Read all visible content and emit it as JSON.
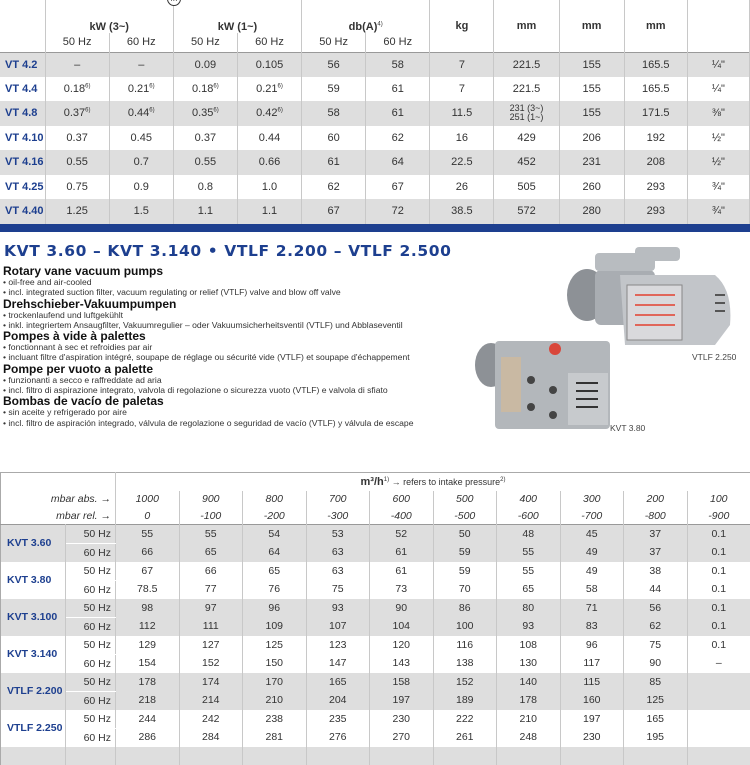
{
  "top_table": {
    "header_groups": [
      "kW (3~)",
      "kW (1~)",
      "db(A)",
      "kg",
      "mm",
      "mm",
      "mm"
    ],
    "db_footnote": "4)",
    "freq": [
      "50 Hz",
      "60 Hz"
    ],
    "motor_icon_label": "m",
    "rows": [
      {
        "model": "VT 4.2",
        "v": [
          "–",
          "–",
          "0.09",
          "0.105",
          "56",
          "58",
          "7",
          "221.5",
          "155",
          "165.5",
          "¼\""
        ]
      },
      {
        "model": "VT 4.4",
        "v": [
          "0.18",
          "0.21",
          "0.18",
          "0.21",
          "59",
          "61",
          "7",
          "221.5",
          "155",
          "165.5",
          "¼\""
        ],
        "fn": "6)"
      },
      {
        "model": "VT 4.8",
        "v": [
          "0.37",
          "0.44",
          "0.35",
          "0.42",
          "58",
          "61",
          "11.5",
          "231 (3~)\n251 (1~)",
          "155",
          "171.5",
          "⅜\""
        ],
        "fn": "6)"
      },
      {
        "model": "VT 4.10",
        "v": [
          "0.37",
          "0.45",
          "0.37",
          "0.44",
          "60",
          "62",
          "16",
          "429",
          "206",
          "192",
          "½\""
        ]
      },
      {
        "model": "VT 4.16",
        "v": [
          "0.55",
          "0.7",
          "0.55",
          "0.66",
          "61",
          "64",
          "22.5",
          "452",
          "231",
          "208",
          "½\""
        ]
      },
      {
        "model": "VT 4.25",
        "v": [
          "0.75",
          "0.9",
          "0.8",
          "1.0",
          "62",
          "67",
          "26",
          "505",
          "260",
          "293",
          "¾\""
        ]
      },
      {
        "model": "VT 4.40",
        "v": [
          "1.25",
          "1.5",
          "1.1",
          "1.1",
          "67",
          "72",
          "38.5",
          "572",
          "280",
          "293",
          "¾\""
        ]
      }
    ]
  },
  "section": {
    "title": "KVT 3.60 – KVT 3.140  •  VTLF 2.200 – VTLF 2.500",
    "blocks": [
      {
        "heading": "Rotary vane vacuum pumps",
        "lines": [
          "• oil-free and air-cooled",
          "• incl. integrated suction filter, vacuum regulating or relief (VTLF) valve and blow off valve"
        ]
      },
      {
        "heading": "Drehschieber-Vakuumpumpen",
        "lines": [
          "• trockenlaufend und luftgekühlt",
          "• inkl. integriertem Ansaugfilter, Vakuumregulier – oder Vakuumsicherheitsventil (VTLF) und Abblaseventil"
        ]
      },
      {
        "heading": "Pompes à vide à palettes",
        "lines": [
          "• fonctionnant à sec et refroidies par air",
          "• incluant filtre d'aspiration intégré, soupape de réglage ou sécurité vide (VTLF) et soupape d'échappement"
        ]
      },
      {
        "heading": "Pompe per vuoto a palette",
        "lines": [
          "• funzionanti a secco e raffreddate ad aria",
          "• incl. filtro di aspirazione integrato, valvola di regolazione o sicurezza vuoto (VTLF) e valvola di sfiato"
        ]
      },
      {
        "heading": "Bombas de vacío de paletas",
        "lines": [
          "• sin aceite y refrigerado por aire",
          "• incl. filtro de aspiración integrado, válvula de regolazione o seguridad de vacío (VTLF) y válvula de escape"
        ]
      }
    ],
    "image_captions": [
      "VTLF 2.250",
      "KVT 3.80"
    ]
  },
  "bottom_table": {
    "unit": "m³/h",
    "unit_fn": "1)",
    "refers": "→ refers to intake pressure",
    "refers_fn": "2)",
    "abs_label": "mbar abs. →",
    "rel_label": "mbar rel. →",
    "abs": [
      "1000",
      "900",
      "800",
      "700",
      "600",
      "500",
      "400",
      "300",
      "200",
      "100"
    ],
    "rel": [
      "0",
      "-100",
      "-200",
      "-300",
      "-400",
      "-500",
      "-600",
      "-700",
      "-800",
      "-900"
    ],
    "models": [
      {
        "model": "KVT 3.60",
        "r50": [
          "55",
          "55",
          "54",
          "53",
          "52",
          "50",
          "48",
          "45",
          "37",
          "0.1"
        ],
        "r60": [
          "66",
          "65",
          "64",
          "63",
          "61",
          "59",
          "55",
          "49",
          "37",
          "0.1"
        ]
      },
      {
        "model": "KVT 3.80",
        "r50": [
          "67",
          "66",
          "65",
          "63",
          "61",
          "59",
          "55",
          "49",
          "38",
          "0.1"
        ],
        "r60": [
          "78.5",
          "77",
          "76",
          "75",
          "73",
          "70",
          "65",
          "58",
          "44",
          "0.1"
        ]
      },
      {
        "model": "KVT 3.100",
        "r50": [
          "98",
          "97",
          "96",
          "93",
          "90",
          "86",
          "80",
          "71",
          "56",
          "0.1"
        ],
        "r60": [
          "112",
          "111",
          "109",
          "107",
          "104",
          "100",
          "93",
          "83",
          "62",
          "0.1"
        ]
      },
      {
        "model": "KVT 3.140",
        "r50": [
          "129",
          "127",
          "125",
          "123",
          "120",
          "116",
          "108",
          "96",
          "75",
          "0.1"
        ],
        "r60": [
          "154",
          "152",
          "150",
          "147",
          "143",
          "138",
          "130",
          "117",
          "90",
          "–"
        ]
      },
      {
        "model": "VTLF 2.200",
        "r50": [
          "178",
          "174",
          "170",
          "165",
          "158",
          "152",
          "140",
          "115",
          "85",
          ""
        ],
        "r60": [
          "218",
          "214",
          "210",
          "204",
          "197",
          "189",
          "178",
          "160",
          "125",
          ""
        ]
      },
      {
        "model": "VTLF 2.250",
        "r50": [
          "244",
          "242",
          "238",
          "235",
          "230",
          "222",
          "210",
          "197",
          "165",
          ""
        ],
        "r60": [
          "286",
          "284",
          "281",
          "276",
          "270",
          "261",
          "248",
          "230",
          "195",
          ""
        ]
      }
    ],
    "hz50": "50 Hz",
    "hz60": "60 Hz"
  },
  "colors": {
    "brand_blue": "#1d3f8f",
    "row_grey": "#dedede"
  }
}
